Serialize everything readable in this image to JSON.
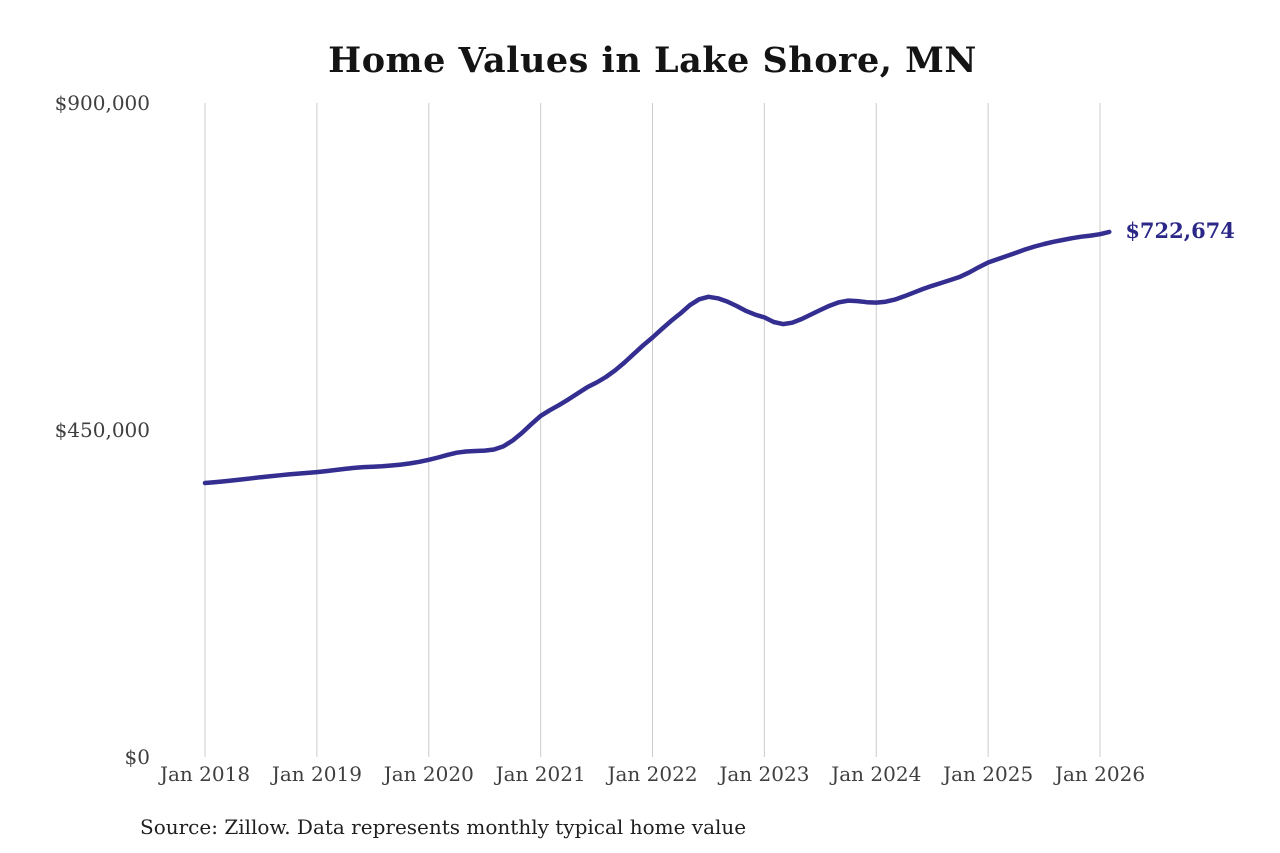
{
  "source": {
    "text": "Source: Zillow. Data represents monthly typical home value"
  },
  "colors": {
    "line": "#332e90",
    "grid": "#cccccc",
    "annotation": "#2b2887",
    "title_text": "#141414",
    "axis_text": "#3f3f3f"
  },
  "chart_data": {
    "type": "line",
    "title": "Home Values in Lake Shore, MN",
    "xlabel": "",
    "ylabel": "",
    "frequency": "monthly",
    "x_start": "2018-01",
    "x_end": "2026-02",
    "x_tick_labels": [
      "Jan 2018",
      "Jan 2019",
      "Jan 2020",
      "Jan 2021",
      "Jan 2022",
      "Jan 2023",
      "Jan 2024",
      "Jan 2025",
      "Jan 2026"
    ],
    "y_tick_labels": [
      "$0",
      "$450,000",
      "$900,000"
    ],
    "y_tick_values": [
      0,
      450000,
      900000
    ],
    "ylim": [
      0,
      900000
    ],
    "grid": "vertical-only",
    "legend": "none",
    "end_label": "$722,674",
    "end_value": 722674,
    "series": [
      {
        "name": "Typical home value",
        "values": [
          377000,
          378100,
          379300,
          380600,
          382000,
          383500,
          385000,
          386300,
          387600,
          388900,
          390000,
          391000,
          392000,
          393400,
          394900,
          396400,
          397800,
          398900,
          399500,
          400100,
          401100,
          402400,
          404000,
          406200,
          409000,
          412200,
          415700,
          418700,
          420400,
          421100,
          421600,
          423100,
          427500,
          435500,
          446000,
          458000,
          469400,
          477300,
          484600,
          492300,
          500600,
          508700,
          515400,
          523000,
          532100,
          542900,
          554800,
          566500,
          577300,
          588900,
          600100,
          610400,
          621700,
          629900,
          633300,
          631200,
          626800,
          620800,
          614100,
          608800,
          604900,
          598600,
          595800,
          597700,
          602700,
          608900,
          615200,
          621000,
          625700,
          628100,
          627400,
          625900,
          625300,
          626500,
          629500,
          634000,
          639000,
          644000,
          648500,
          652500,
          656500,
          661000,
          667000,
          674000,
          680500,
          685000,
          689500,
          694000,
          698500,
          702500,
          706000,
          709000,
          711500,
          714000,
          716000,
          717500,
          719500,
          722674
        ]
      }
    ]
  }
}
